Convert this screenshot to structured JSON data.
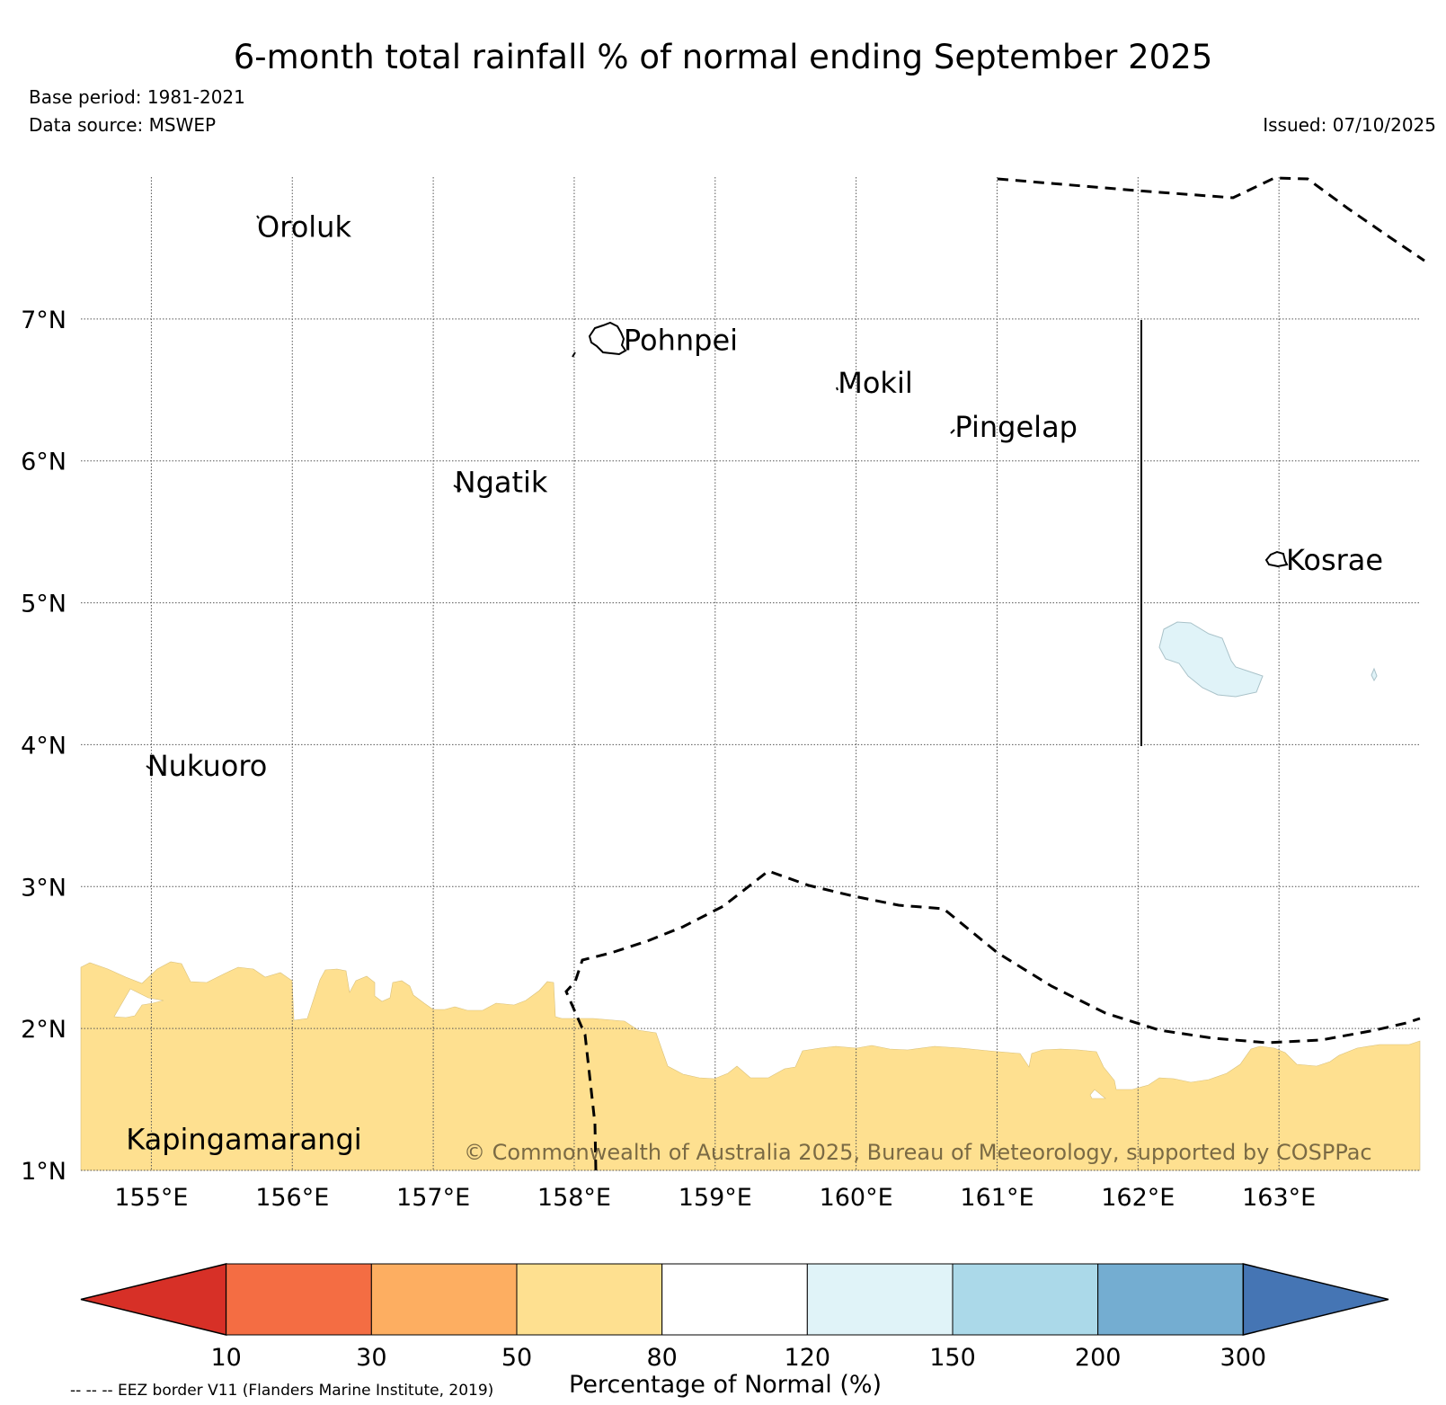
{
  "title": "6-month total rainfall % of normal ending September 2025",
  "base_period": "Base period: 1981-2021",
  "data_source": "Data source: MSWEP",
  "issued": "Issued: 07/10/2025",
  "copyright": "© Commonwealth of Australia 2025, Bureau of Meteorology, supported by COSPPac",
  "eez_note": "-- -- -- EEZ border V11 (Flanders Marine Institute, 2019)",
  "map": {
    "lon_range": [
      154.5,
      164.0
    ],
    "lat_range": [
      1.0,
      8.0
    ],
    "lon_ticks": [
      {
        "value": 155,
        "label": "155°E"
      },
      {
        "value": 156,
        "label": "156°E"
      },
      {
        "value": 157,
        "label": "157°E"
      },
      {
        "value": 158,
        "label": "158°E"
      },
      {
        "value": 159,
        "label": "159°E"
      },
      {
        "value": 160,
        "label": "160°E"
      },
      {
        "value": 161,
        "label": "161°E"
      },
      {
        "value": 162,
        "label": "162°E"
      },
      {
        "value": 163,
        "label": "163°E"
      }
    ],
    "lat_ticks": [
      {
        "value": 1,
        "label": "1°N"
      },
      {
        "value": 2,
        "label": "2°N"
      },
      {
        "value": 3,
        "label": "3°N"
      },
      {
        "value": 4,
        "label": "4°N"
      },
      {
        "value": 5,
        "label": "5°N"
      },
      {
        "value": 6,
        "label": "6°N"
      },
      {
        "value": 7,
        "label": "7°N"
      }
    ],
    "places": [
      {
        "name": "Oroluk",
        "lon": 155.75,
        "lat": 7.65
      },
      {
        "name": "Pohnpei",
        "lon": 158.35,
        "lat": 6.85
      },
      {
        "name": "Mokil",
        "lon": 159.87,
        "lat": 6.55
      },
      {
        "name": "Pingelap",
        "lon": 160.7,
        "lat": 6.24
      },
      {
        "name": "Ngatik",
        "lon": 157.15,
        "lat": 5.85
      },
      {
        "name": "Kosrae",
        "lon": 163.05,
        "lat": 5.3
      },
      {
        "name": "Nukuoro",
        "lon": 154.97,
        "lat": 3.85
      },
      {
        "name": "Kapingamarangi",
        "lon": 154.82,
        "lat": 1.22
      }
    ]
  },
  "legend": {
    "title": "Percentage of Normal (%)",
    "bins": [
      {
        "label": "<10",
        "color": "#d73027"
      },
      {
        "label": "10-30",
        "color": "#f46d43"
      },
      {
        "label": "30-50",
        "color": "#fdae61"
      },
      {
        "label": "50-80",
        "color": "#fee090"
      },
      {
        "label": "80-120",
        "color": "#ffffff"
      },
      {
        "label": "120-150",
        "color": "#e0f3f8"
      },
      {
        "label": "150-200",
        "color": "#abd9e9"
      },
      {
        "label": "200-300",
        "color": "#74add1"
      },
      {
        "label": ">300",
        "color": "#4575b4"
      }
    ],
    "boundaries": [
      "10",
      "30",
      "50",
      "80",
      "120",
      "150",
      "200",
      "300"
    ]
  }
}
